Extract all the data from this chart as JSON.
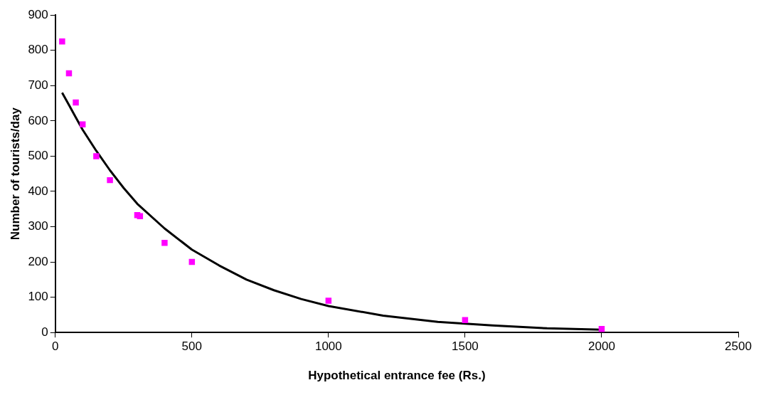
{
  "chart_data": {
    "type": "scatter",
    "xlabel": "Hypothetical entrance fee (Rs.)",
    "ylabel": "Number of tourists/day",
    "xlim": [
      0,
      2500
    ],
    "xticks": [
      0,
      500,
      1000,
      1500,
      2000,
      2500
    ],
    "ylim": [
      0,
      900
    ],
    "yticks": [
      0,
      100,
      200,
      300,
      400,
      500,
      600,
      700,
      800,
      900
    ],
    "grid": false,
    "legend": false,
    "series": [
      {
        "color": "#ff00ff",
        "marker": "square",
        "x": [
          25,
          50,
          75,
          100,
          150,
          200,
          300,
          310,
          400,
          500,
          1000,
          1500,
          2000
        ],
        "values": [
          825,
          735,
          652,
          590,
          500,
          432,
          333,
          330,
          254,
          200,
          90,
          35,
          10
        ]
      },
      {
        "type": "line",
        "color": "#000000",
        "marker": "none",
        "line_style": "solid",
        "x": [
          25,
          50,
          75,
          100,
          150,
          200,
          250,
          300,
          400,
          500,
          600,
          700,
          800,
          900,
          1000,
          1200,
          1400,
          1600,
          1800,
          2000
        ],
        "values": [
          680,
          645,
          610,
          575,
          515,
          460,
          410,
          365,
          295,
          235,
          190,
          150,
          120,
          95,
          75,
          48,
          30,
          20,
          12,
          8
        ]
      }
    ]
  }
}
